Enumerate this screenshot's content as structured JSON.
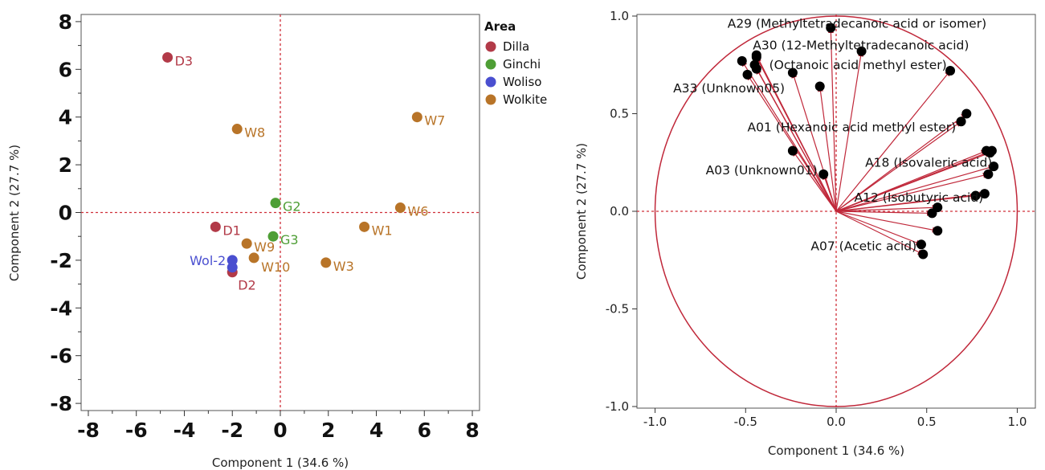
{
  "chart_data": [
    {
      "type": "scatter",
      "xlabel": "Component 1  (34.6 %)",
      "ylabel": "Component 2  (27.7 %)",
      "xlim": [
        -8.3,
        8.3
      ],
      "ylim": [
        -8.3,
        8.3
      ],
      "x_ticks": [
        "-8",
        "-6",
        "-4",
        "-2",
        "0",
        "2",
        "4",
        "6",
        "8"
      ],
      "y_ticks": [
        "8",
        "6",
        "4",
        "2",
        "0",
        "-2",
        "-4",
        "-6",
        "-8"
      ],
      "legend": {
        "title": "Area",
        "placement": "top-right",
        "entries": [
          {
            "name": "Dilla",
            "color": "#b23a48"
          },
          {
            "name": "Ginchi",
            "color": "#4e9e35"
          },
          {
            "name": "Woliso",
            "color": "#4a4fd0"
          },
          {
            "name": "Wolkite",
            "color": "#b87428"
          }
        ]
      },
      "points": [
        {
          "label": "D3",
          "area": "Dilla",
          "x": -4.7,
          "y": 6.5
        },
        {
          "label": "D1",
          "area": "Dilla",
          "x": -2.7,
          "y": -0.6
        },
        {
          "label": "D2",
          "area": "Dilla",
          "x": -2.0,
          "y": -2.5
        },
        {
          "label": "G2",
          "area": "Ginchi",
          "x": -0.2,
          "y": 0.4
        },
        {
          "label": "G3",
          "area": "Ginchi",
          "x": -0.3,
          "y": -1.0
        },
        {
          "label": "Wol-2",
          "area": "Woliso",
          "x": -2.0,
          "y": -2.0
        },
        {
          "label": "",
          "area": "Woliso",
          "x": -2.0,
          "y": -2.3
        },
        {
          "label": "W8",
          "area": "Wolkite",
          "x": -1.8,
          "y": 3.5
        },
        {
          "label": "W7",
          "area": "Wolkite",
          "x": 5.7,
          "y": 4.0
        },
        {
          "label": "W6",
          "area": "Wolkite",
          "x": 5.0,
          "y": 0.2
        },
        {
          "label": "W1",
          "area": "Wolkite",
          "x": 3.5,
          "y": -0.6
        },
        {
          "label": "W3",
          "area": "Wolkite",
          "x": 1.9,
          "y": -2.1
        },
        {
          "label": "W9",
          "area": "Wolkite",
          "x": -1.4,
          "y": -1.3
        },
        {
          "label": "W10",
          "area": "Wolkite",
          "x": -1.1,
          "y": -1.9
        }
      ]
    },
    {
      "type": "scatter",
      "subtype": "loading-plot",
      "xlabel": "Component 1  (34.6 %)",
      "ylabel": "Component 2  (27.7 %)",
      "xlim": [
        -1.1,
        1.1
      ],
      "ylim": [
        -1.0,
        1.0
      ],
      "x_ticks": [
        "-1.0",
        "-0.5",
        "0.0",
        "0.5",
        "1.0"
      ],
      "y_ticks": [
        "1.0",
        "0.5",
        "0.0",
        "-0.5",
        "-1.0"
      ],
      "circle_color": "#c0283a",
      "arrow_color": "#c0283a",
      "loadings": [
        {
          "x": -0.52,
          "y": 0.77
        },
        {
          "x": -0.49,
          "y": 0.7
        },
        {
          "x": -0.44,
          "y": 0.79
        },
        {
          "x": -0.44,
          "y": 0.8
        },
        {
          "x": -0.45,
          "y": 0.75
        },
        {
          "x": -0.44,
          "y": 0.73
        },
        {
          "x": -0.24,
          "y": 0.71
        },
        {
          "x": -0.09,
          "y": 0.64
        },
        {
          "x": -0.03,
          "y": 0.94
        },
        {
          "x": 0.14,
          "y": 0.82
        },
        {
          "x": 0.63,
          "y": 0.72
        },
        {
          "x": 0.72,
          "y": 0.5
        },
        {
          "x": 0.69,
          "y": 0.46
        },
        {
          "x": -0.24,
          "y": 0.31
        },
        {
          "x": -0.07,
          "y": 0.19
        },
        {
          "x": 0.83,
          "y": 0.31
        },
        {
          "x": 0.86,
          "y": 0.31
        },
        {
          "x": 0.85,
          "y": 0.3
        },
        {
          "x": 0.87,
          "y": 0.23
        },
        {
          "x": 0.84,
          "y": 0.19
        },
        {
          "x": 0.82,
          "y": 0.09
        },
        {
          "x": 0.77,
          "y": 0.08
        },
        {
          "x": 0.56,
          "y": 0.02
        },
        {
          "x": 0.53,
          "y": -0.01
        },
        {
          "x": 0.56,
          "y": -0.1
        },
        {
          "x": 0.47,
          "y": -0.17
        },
        {
          "x": 0.48,
          "y": -0.22
        }
      ],
      "annotations": [
        {
          "text": "A29 (Methyltetradecanoic acid or isomer)",
          "x": -0.6,
          "y": 0.96
        },
        {
          "text": "A30 (12-Methyltetradecanoic acid)",
          "x": -0.46,
          "y": 0.85
        },
        {
          "text": "(Octanoic acid methyl ester)",
          "x": -0.37,
          "y": 0.75
        },
        {
          "text": "A33 (Unknown05)",
          "x": -0.9,
          "y": 0.63
        },
        {
          "text": "A01 (Hexanoic acid methyl ester)",
          "x": -0.49,
          "y": 0.43
        },
        {
          "text": "A03 (Unknown01)",
          "x": -0.72,
          "y": 0.21
        },
        {
          "text": "A18 (Isovaleric acid)",
          "x": 0.16,
          "y": 0.25
        },
        {
          "text": "A12 (Isobutyric acid)",
          "x": 0.1,
          "y": 0.07
        },
        {
          "text": "A07 (Acetic acid)",
          "x": -0.14,
          "y": -0.18
        }
      ]
    }
  ]
}
